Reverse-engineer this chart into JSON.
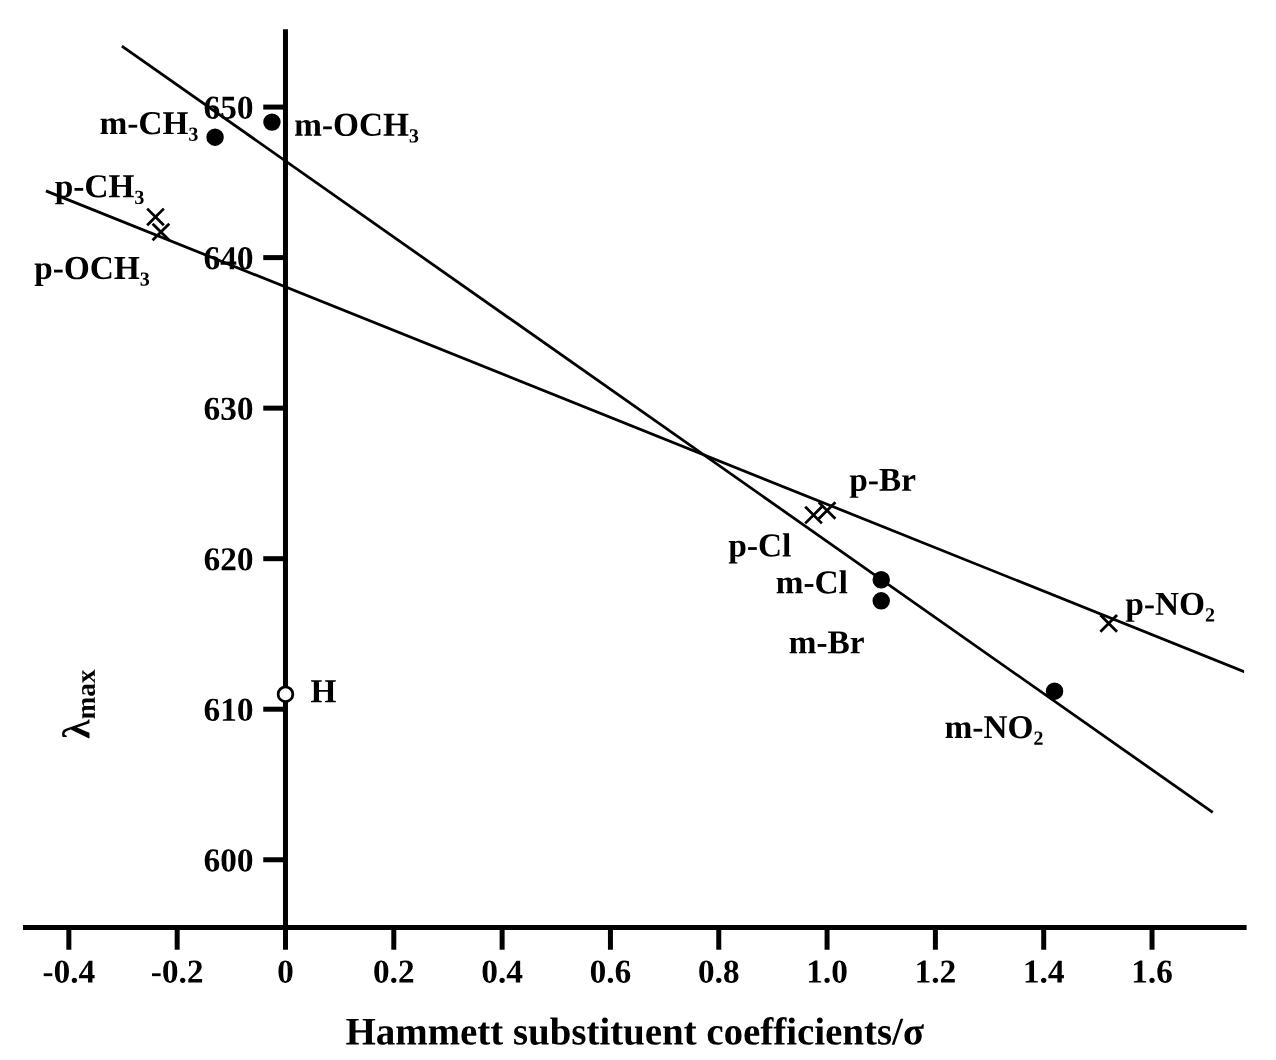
{
  "chart_data": {
    "type": "scatter",
    "xlabel": "Hammett substituent coefficients/σ",
    "ylabel": "λ$_{max}$",
    "xlim": [
      -0.48,
      1.77
    ],
    "ylim": [
      595.5,
      655
    ],
    "xticks": [
      -0.4,
      -0.2,
      0,
      0.2,
      0.4,
      0.6,
      0.8,
      {
        "value": 1.0,
        "label": "1.0"
      },
      1.2,
      1.4,
      1.6
    ],
    "yticks": [
      600,
      610,
      620,
      630,
      640,
      650
    ],
    "grid": false,
    "legend": false,
    "series": [
      {
        "marker": "circle",
        "color": "#000000",
        "x": [
          -0.13,
          -0.025,
          1.1,
          1.1,
          1.42
        ],
        "values": [
          648,
          649,
          618.6,
          617.2,
          611.2
        ]
      },
      {
        "marker": "cross",
        "color": "#000000",
        "x": [
          -0.24,
          -0.23,
          0.975,
          1.0,
          1.52
        ],
        "values": [
          642.7,
          641.7,
          622.9,
          623.2,
          615.7
        ]
      },
      {
        "marker": "circle",
        "color": "#ffffff",
        "x": [
          0
        ],
        "values": [
          611
        ]
      },
      {
        "type": "line",
        "marker": "none",
        "line_style": "solid",
        "color": "#000000",
        "x": [
          -0.3,
          1.71
        ],
        "values": [
          654,
          603.2
        ]
      },
      {
        "type": "line",
        "marker": "none",
        "line_style": "solid",
        "color": "#000000",
        "x": [
          -0.44,
          1.77
        ],
        "values": [
          644.4,
          612.5
        ]
      }
    ],
    "annotations": [
      {
        "text": "m-CH₃",
        "x": -0.13,
        "y": 648
      },
      {
        "text": "m-OCH₃",
        "x": -0.025,
        "y": 649
      },
      {
        "text": "p-CH₃",
        "x": -0.24,
        "y": 642.7
      },
      {
        "text": "p-OCH₃",
        "x": -0.23,
        "y": 641.7
      },
      {
        "text": "H",
        "x": 0,
        "y": 611
      },
      {
        "text": "p-Cl",
        "x": 0.975,
        "y": 622.9
      },
      {
        "text": "p-Br",
        "x": 1.0,
        "y": 623.2
      },
      {
        "text": "m-Cl",
        "x": 1.1,
        "y": 618.6
      },
      {
        "text": "m-Br",
        "x": 1.1,
        "y": 617.2
      },
      {
        "text": "m-NO₂",
        "x": 1.42,
        "y": 611.2
      },
      {
        "text": "p-NO₂",
        "x": 1.52,
        "y": 615.7
      }
    ]
  }
}
